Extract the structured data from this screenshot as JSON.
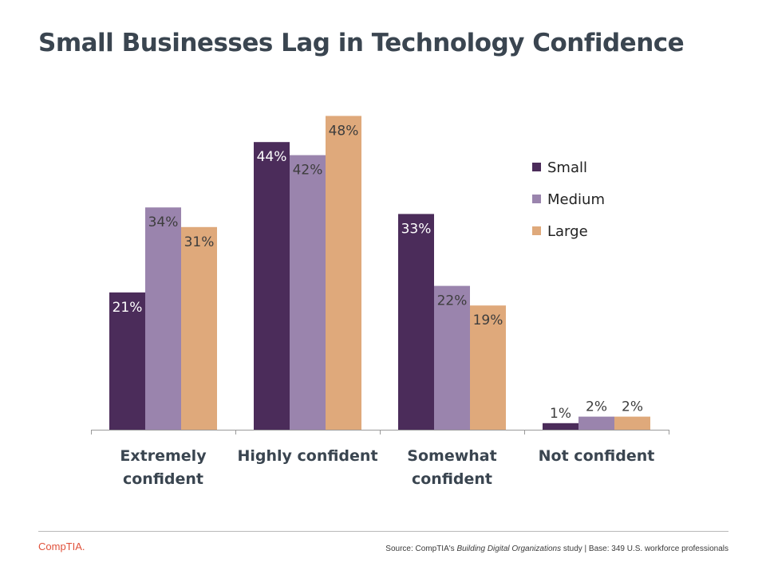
{
  "title": "Small Businesses Lag in Technology Confidence",
  "chart_data": {
    "type": "bar",
    "categories": [
      [
        "Extremely",
        "confident"
      ],
      [
        "Highly confident"
      ],
      [
        "Somewhat",
        "confident"
      ],
      [
        "Not confident"
      ]
    ],
    "series": [
      {
        "name": "Small",
        "color": "#4b2c5a",
        "values": [
          21,
          44,
          33,
          1
        ]
      },
      {
        "name": "Medium",
        "color": "#9a84ad",
        "values": [
          34,
          42,
          22,
          2
        ]
      },
      {
        "name": "Large",
        "color": "#dfa97b",
        "values": [
          31,
          48,
          19,
          2
        ]
      }
    ],
    "value_suffix": "%",
    "ylim": [
      0,
      50
    ],
    "grid": false,
    "legend": "top-right",
    "xlabel": "",
    "ylabel": ""
  },
  "footer": {
    "logo": "CompTIA.",
    "source_prefix": "Source: CompTIA's ",
    "source_title": "Building Digital Organizations",
    "source_suffix": " study | Base: 349 U.S. workforce professionals"
  }
}
